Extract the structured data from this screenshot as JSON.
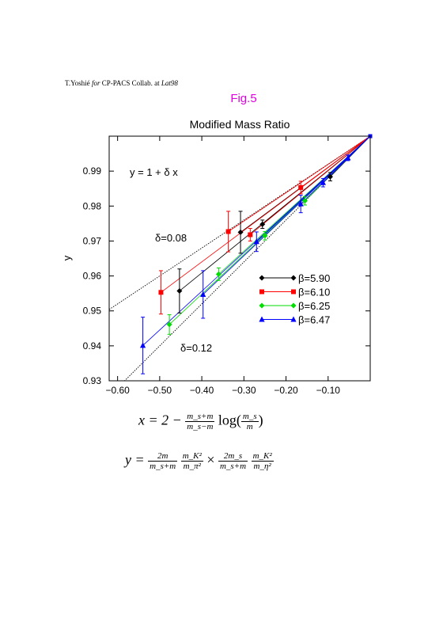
{
  "credit": {
    "author": "T.Yoshié",
    "for_word": "for",
    "collab": "CP-PACS Collab. at",
    "conf": "Lat98"
  },
  "figure_label": "Fig.5",
  "formulas": {
    "x": {
      "lhs": "x = 2 −",
      "num": "m_s+m",
      "den": "m_s−m",
      "log": "log(",
      "log_num": "m_s",
      "log_den": "m",
      "close": ")"
    },
    "y": {
      "lhs": "y =",
      "f1_num": "2m",
      "f1_den": "m_s+m",
      "f2_num": "m_K²",
      "f2_den": "m_π²",
      "times": "×",
      "f3_num": "2m_s",
      "f3_den": "m_s+m",
      "f4_num": "m_K²",
      "f4_den": "m_η²"
    }
  },
  "chart_data": {
    "type": "scatter",
    "title": "Modified Mass Ratio",
    "xlabel": "",
    "ylabel": "y",
    "xlim": [
      -0.62,
      0.0
    ],
    "ylim": [
      0.93,
      1.0
    ],
    "xticks": [
      -0.6,
      -0.5,
      -0.4,
      -0.3,
      -0.2,
      -0.1
    ],
    "xtick_labels": [
      "−0.60",
      "−0.50",
      "−0.40",
      "−0.30",
      "−0.20",
      "−0.10"
    ],
    "yticks": [
      0.93,
      0.94,
      0.95,
      0.96,
      0.97,
      0.98,
      0.99
    ],
    "ytick_labels": [
      "0.93",
      "0.94",
      "0.95",
      "0.96",
      "0.97",
      "0.98",
      "0.99"
    ],
    "legend_position": "right",
    "annotations": {
      "formula": "y = 1 + δ x",
      "upper": "δ=0.08",
      "lower": "δ=0.12"
    },
    "reference_lines": [
      {
        "delta": 0.08
      },
      {
        "delta": 0.12
      }
    ],
    "series": [
      {
        "name": "β=5.90",
        "color": "#000000",
        "marker": "diamond",
        "points": [
          {
            "x": -0.453,
            "y": 0.9557,
            "err": 0.0063
          },
          {
            "x": -0.308,
            "y": 0.9725,
            "err": 0.006
          },
          {
            "x": -0.256,
            "y": 0.9748,
            "err": 0.0012
          },
          {
            "x": -0.095,
            "y": 0.9884,
            "err": 0.0012
          }
        ]
      },
      {
        "name": "β=6.10",
        "color": "#ff0000",
        "marker": "square",
        "points": [
          {
            "x": -0.497,
            "y": 0.9553,
            "err": 0.0062
          },
          {
            "x": -0.337,
            "y": 0.9727,
            "err": 0.0058
          },
          {
            "x": -0.285,
            "y": 0.9718,
            "err": 0.0018
          },
          {
            "x": -0.165,
            "y": 0.9853,
            "err": 0.0018
          }
        ]
      },
      {
        "name": "β=6.25",
        "color": "#00dd00",
        "marker": "diamond",
        "points": [
          {
            "x": -0.477,
            "y": 0.9461,
            "err": 0.0028
          },
          {
            "x": -0.36,
            "y": 0.9605,
            "err": 0.0018
          },
          {
            "x": -0.25,
            "y": 0.9715,
            "err": 0.0012
          },
          {
            "x": -0.155,
            "y": 0.9815,
            "err": 0.0012
          }
        ]
      },
      {
        "name": "β=6.47",
        "color": "#0000ff",
        "marker": "triangle",
        "points": [
          {
            "x": -0.54,
            "y": 0.9401,
            "err": 0.0081
          },
          {
            "x": -0.397,
            "y": 0.9547,
            "err": 0.0068
          },
          {
            "x": -0.27,
            "y": 0.9698,
            "err": 0.0028
          },
          {
            "x": -0.165,
            "y": 0.9806,
            "err": 0.0025
          },
          {
            "x": -0.112,
            "y": 0.9867,
            "err": 0.0012
          },
          {
            "x": -0.053,
            "y": 0.9938,
            "err": 0.0008
          }
        ]
      }
    ]
  }
}
